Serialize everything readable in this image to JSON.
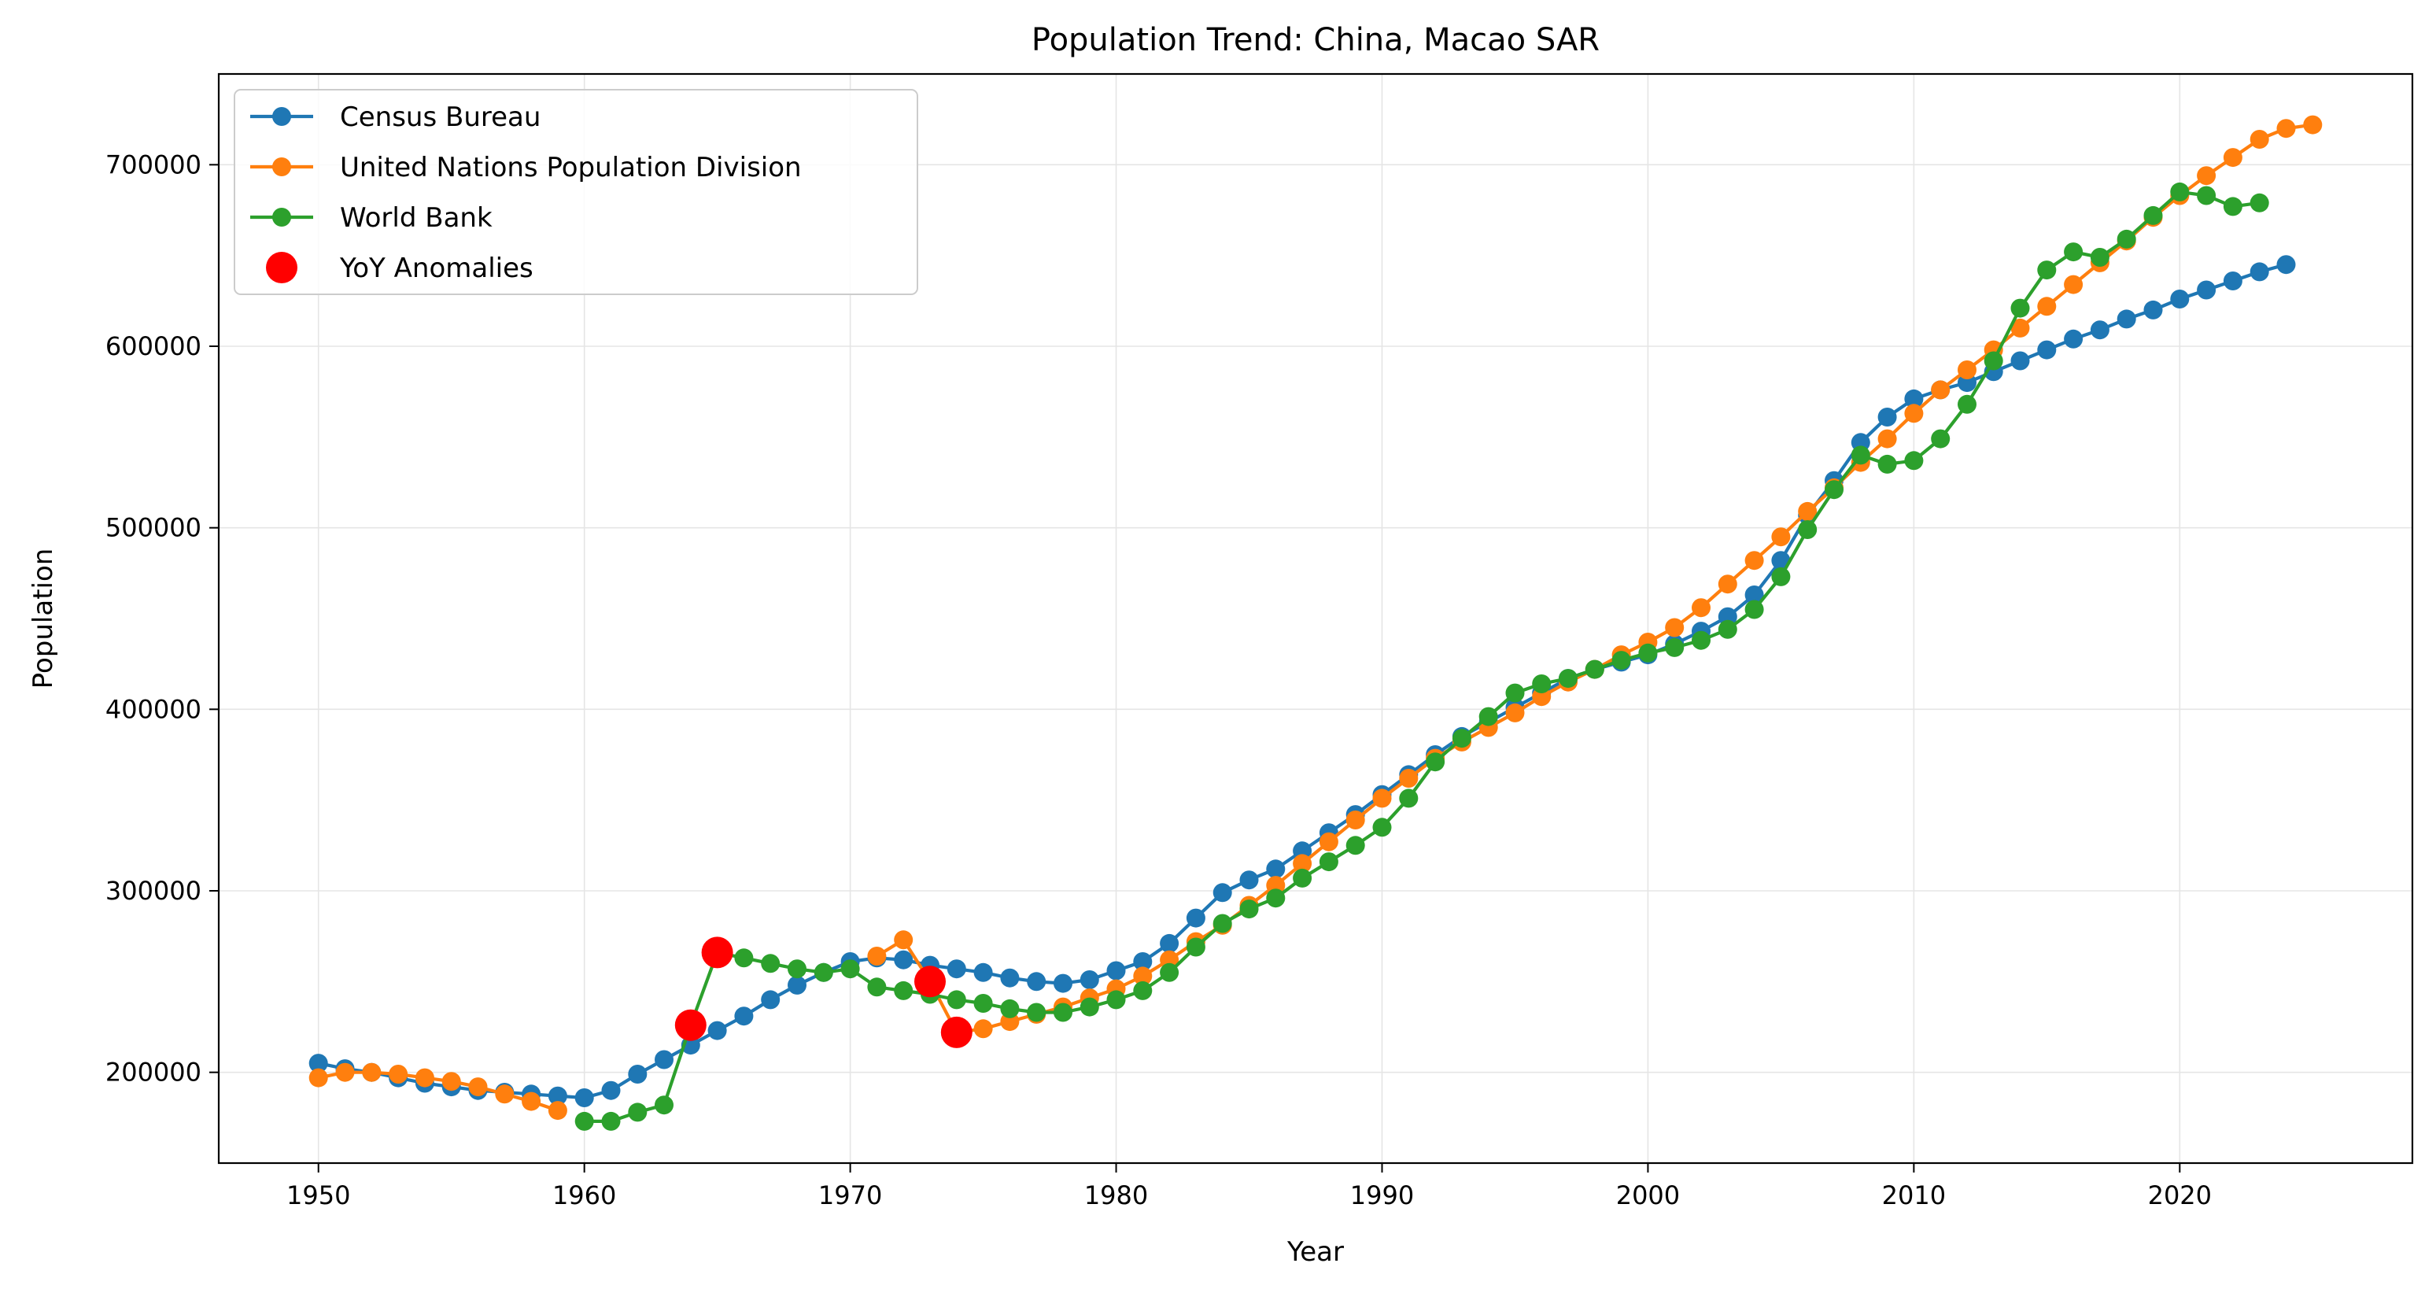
{
  "chart_data": {
    "type": "line",
    "title": "Population Trend: China, Macao SAR",
    "xlabel": "Year",
    "ylabel": "Population",
    "xlim": [
      1946.25,
      2028.75
    ],
    "ylim": [
      150000,
      750000
    ],
    "x_ticks": [
      1950,
      1960,
      1970,
      1980,
      1990,
      2000,
      2010,
      2020
    ],
    "y_ticks": [
      200000,
      300000,
      400000,
      500000,
      600000,
      700000
    ],
    "grid": true,
    "legend_position": "top-left",
    "series": [
      {
        "name": "Census Bureau",
        "color": "#1f77b4",
        "x": [
          1950,
          1951,
          1952,
          1953,
          1954,
          1955,
          1956,
          1957,
          1958,
          1959,
          1960,
          1961,
          1962,
          1963,
          1964,
          1965,
          1966,
          1967,
          1968,
          1969,
          1970,
          1971,
          1972,
          1973,
          1974,
          1975,
          1976,
          1977,
          1978,
          1979,
          1980,
          1981,
          1982,
          1983,
          1984,
          1985,
          1986,
          1987,
          1988,
          1989,
          1990,
          1991,
          1992,
          1993,
          1994,
          1995,
          1996,
          1997,
          1998,
          1999,
          2000,
          2001,
          2002,
          2003,
          2004,
          2005,
          2006,
          2007,
          2008,
          2009,
          2010,
          2011,
          2012,
          2013,
          2014,
          2015,
          2016,
          2017,
          2018,
          2019,
          2020,
          2021,
          2022,
          2023,
          2024
        ],
        "values": [
          205000,
          202000,
          200000,
          197000,
          194000,
          192000,
          190000,
          189000,
          188000,
          187000,
          186000,
          190000,
          199000,
          207000,
          215000,
          223000,
          231000,
          240000,
          248000,
          255000,
          261000,
          263000,
          262000,
          259000,
          257000,
          255000,
          252000,
          250000,
          249000,
          251000,
          256000,
          261000,
          271000,
          285000,
          299000,
          306000,
          312000,
          322000,
          332000,
          342000,
          353000,
          364000,
          375000,
          385000,
          393000,
          401000,
          409000,
          417000,
          422000,
          426000,
          430000,
          436000,
          443000,
          451000,
          463000,
          482000,
          507000,
          526000,
          547000,
          561000,
          571000,
          576000,
          580000,
          586000,
          592000,
          598000,
          604000,
          609000,
          615000,
          620000,
          626000,
          631000,
          636000,
          641000,
          645000
        ]
      },
      {
        "name": "United Nations Population Division",
        "color": "#ff7f0e",
        "x": [
          1950,
          1951,
          1952,
          1953,
          1954,
          1955,
          1956,
          1957,
          1958,
          1959,
          1960,
          1961,
          1962,
          1963,
          1964,
          1965,
          1966,
          1967,
          1968,
          1969,
          1970,
          1971,
          1972,
          1973,
          1974,
          1975,
          1976,
          1977,
          1978,
          1979,
          1980,
          1981,
          1982,
          1983,
          1984,
          1985,
          1986,
          1987,
          1988,
          1989,
          1990,
          1991,
          1992,
          1993,
          1994,
          1995,
          1996,
          1997,
          1998,
          1999,
          2000,
          2001,
          2002,
          2003,
          2004,
          2005,
          2006,
          2007,
          2008,
          2009,
          2010,
          2011,
          2012,
          2013,
          2014,
          2015,
          2016,
          2017,
          2018,
          2019,
          2020,
          2021,
          2022,
          2023,
          2024,
          2025
        ],
        "values": [
          197000,
          200000,
          200000,
          199000,
          197000,
          195000,
          192000,
          188000,
          184000,
          179000,
          null,
          null,
          null,
          null,
          null,
          null,
          null,
          null,
          null,
          null,
          null,
          264000,
          273000,
          250000,
          222000,
          224000,
          228000,
          232000,
          236000,
          241000,
          246000,
          253000,
          262000,
          272000,
          281000,
          292000,
          303000,
          315000,
          327000,
          339000,
          351000,
          362000,
          373000,
          382000,
          390000,
          398000,
          407000,
          415000,
          422000,
          430000,
          437000,
          445000,
          456000,
          469000,
          482000,
          495000,
          509000,
          522000,
          536000,
          549000,
          563000,
          576000,
          587000,
          598000,
          610000,
          622000,
          634000,
          646000,
          658000,
          671000,
          683000,
          694000,
          704000,
          714000,
          720000,
          722000
        ]
      },
      {
        "name": "World Bank",
        "color": "#2ca02c",
        "x": [
          1960,
          1961,
          1962,
          1963,
          1964,
          1965,
          1966,
          1967,
          1968,
          1969,
          1970,
          1971,
          1972,
          1973,
          1974,
          1975,
          1976,
          1977,
          1978,
          1979,
          1980,
          1981,
          1982,
          1983,
          1984,
          1985,
          1986,
          1987,
          1988,
          1989,
          1990,
          1991,
          1992,
          1993,
          1994,
          1995,
          1996,
          1997,
          1998,
          1999,
          2000,
          2001,
          2002,
          2003,
          2004,
          2005,
          2006,
          2007,
          2008,
          2009,
          2010,
          2011,
          2012,
          2013,
          2014,
          2015,
          2016,
          2017,
          2018,
          2019,
          2020,
          2021,
          2022,
          2023
        ],
        "values": [
          173000,
          173000,
          178000,
          182000,
          226000,
          266000,
          263000,
          260000,
          257000,
          255000,
          257000,
          247000,
          245000,
          243000,
          240000,
          238000,
          235000,
          233000,
          233000,
          236000,
          240000,
          245000,
          255000,
          269000,
          282000,
          290000,
          296000,
          307000,
          316000,
          325000,
          335000,
          351000,
          371000,
          384000,
          396000,
          409000,
          414000,
          417000,
          422000,
          427000,
          431000,
          434000,
          438000,
          444000,
          455000,
          473000,
          499000,
          521000,
          540000,
          535000,
          537000,
          549000,
          568000,
          592000,
          621000,
          642000,
          652000,
          649000,
          659000,
          672000,
          685000,
          683000,
          677000,
          679000
        ]
      }
    ],
    "anomalies": {
      "name": "YoY Anomalies",
      "color": "#ff0000",
      "points": [
        {
          "x": 1964,
          "y": 226000
        },
        {
          "x": 1965,
          "y": 266000
        },
        {
          "x": 1973,
          "y": 250000
        },
        {
          "x": 1974,
          "y": 222000
        }
      ]
    }
  }
}
